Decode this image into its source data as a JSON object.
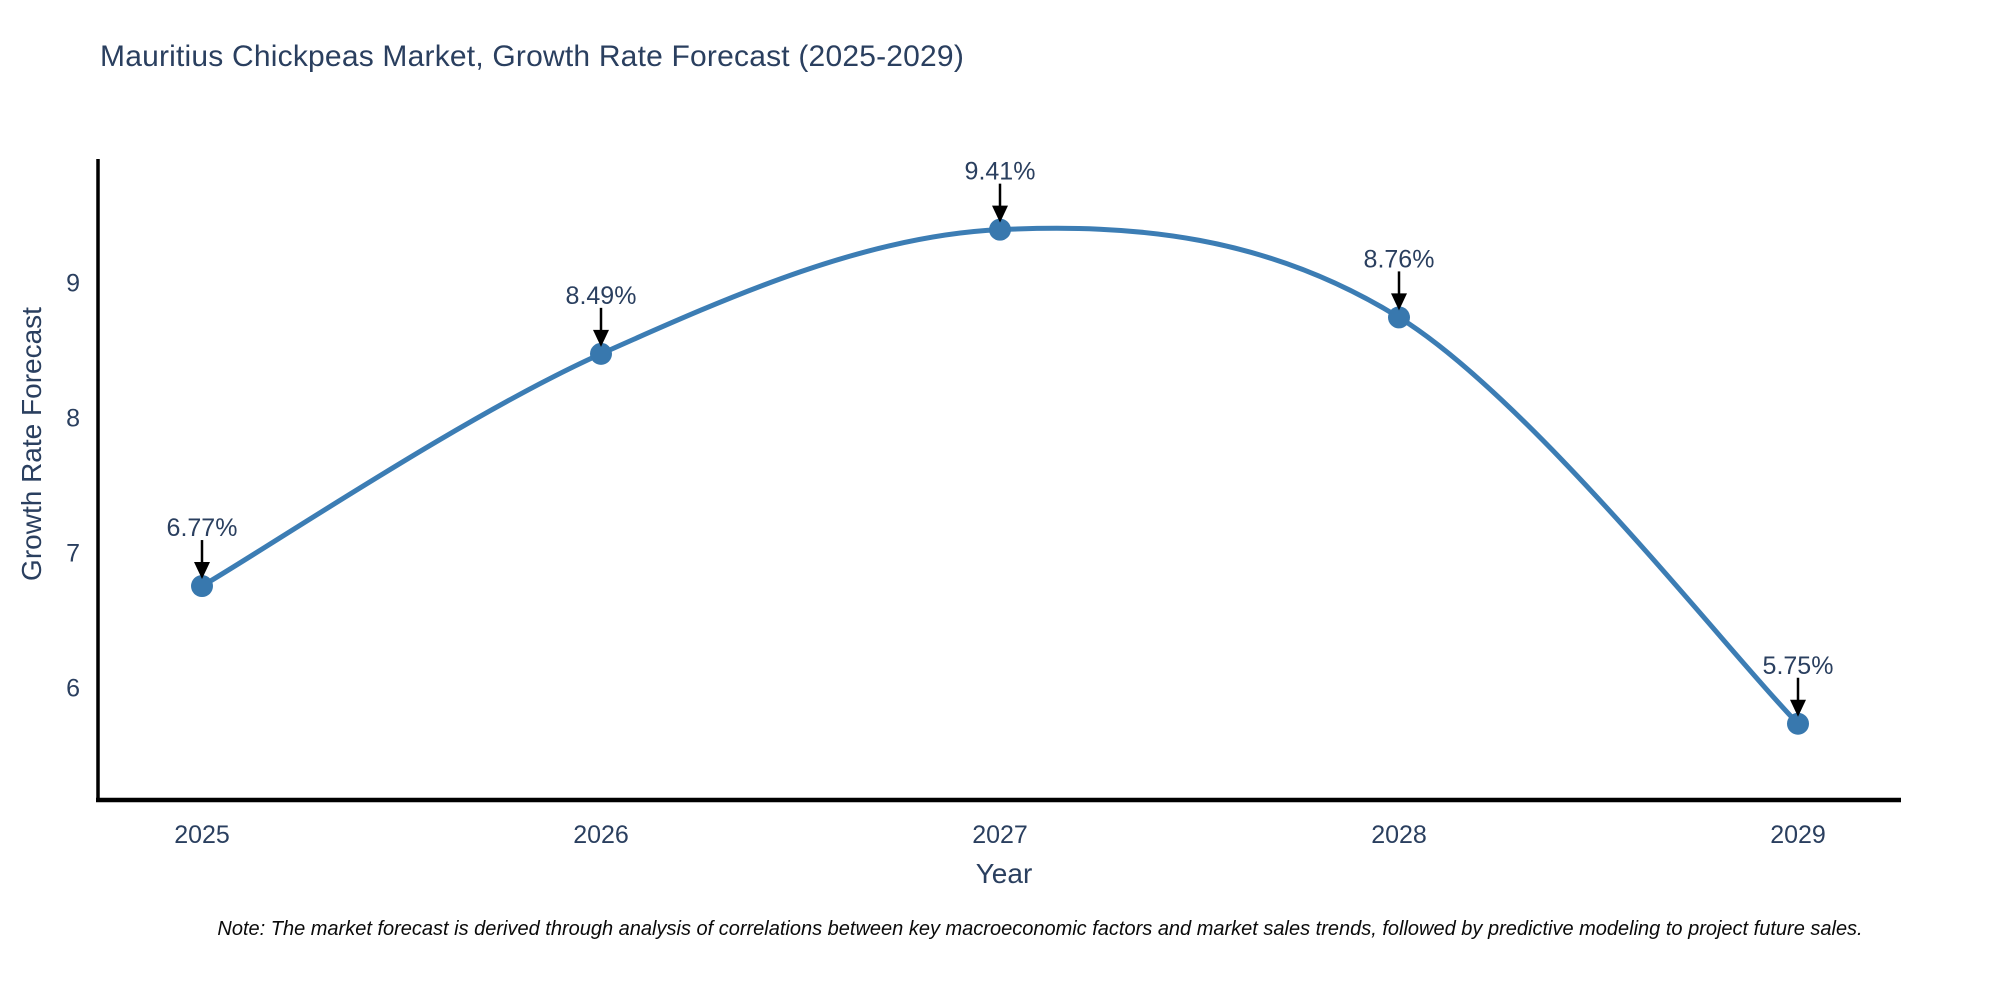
{
  "chart": {
    "title": "Mauritius Chickpeas Market, Growth Rate Forecast (2025-2029)",
    "xlabel": "Year",
    "ylabel": "Growth Rate Forecast",
    "note": "Note: The market forecast is derived through analysis of correlations between key macroeconomic factors and market sales trends, followed by predictive modeling to project future sales."
  },
  "chart_data": {
    "type": "line",
    "title": "Mauritius Chickpeas Market, Growth Rate Forecast (2025-2029)",
    "xlabel": "Year",
    "ylabel": "Growth Rate Forecast",
    "x": [
      2025,
      2026,
      2027,
      2028,
      2029
    ],
    "values": [
      6.77,
      8.49,
      9.41,
      8.76,
      5.75
    ],
    "point_labels": [
      "6.77%",
      "8.49%",
      "9.41%",
      "8.76%",
      "5.75%"
    ],
    "yticks": [
      6,
      7,
      8,
      9
    ],
    "ylim": [
      5.19,
      9.93
    ],
    "line_shape": "spline",
    "grid": false,
    "legend_position": "none",
    "colors": {
      "line": "#3c7db4",
      "marker": "#3878ae",
      "axis": "#000000",
      "tick_text": "#2a3f5f",
      "annotation_text": "#2a3f5f",
      "annotation_arrow": "#000000"
    }
  }
}
